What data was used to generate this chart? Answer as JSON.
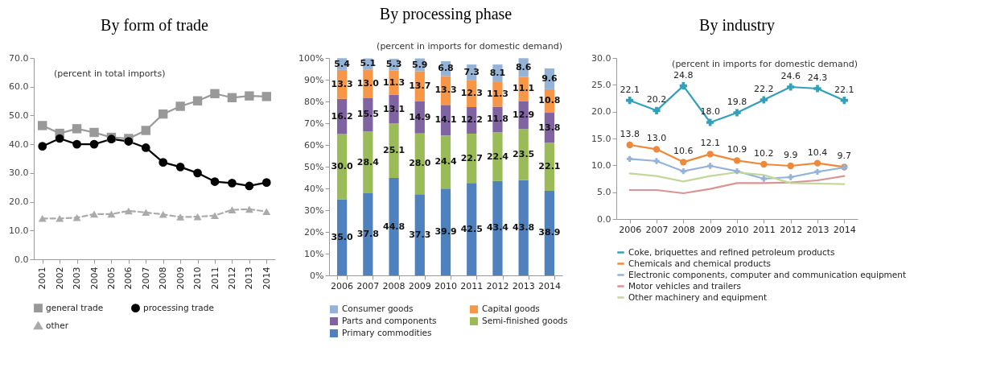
{
  "chart_data": [
    {
      "type": "line",
      "title": "By form of trade",
      "annotations": [
        "(percent in total imports)"
      ],
      "categories": [
        "2001",
        "2002",
        "2003",
        "2004",
        "2005",
        "2006",
        "2007",
        "2008",
        "2009",
        "2010",
        "2011",
        "2012",
        "2013",
        "2014"
      ],
      "series": [
        {
          "name": "general trade",
          "color": "#999999",
          "marker": "square",
          "line_style": "solid",
          "values": [
            46.5,
            43.8,
            45.4,
            44.1,
            42.4,
            42.0,
            44.8,
            50.5,
            53.2,
            55.1,
            57.6,
            56.2,
            56.8,
            56.6
          ]
        },
        {
          "name": "processing trade",
          "color": "#000000",
          "marker": "circle",
          "line_style": "solid",
          "values": [
            39.3,
            42.0,
            40.0,
            40.0,
            41.8,
            41.0,
            38.8,
            33.7,
            32.1,
            30.0,
            27.0,
            26.5,
            25.5,
            26.7
          ]
        },
        {
          "name": "other",
          "color": "#aaaaaa",
          "marker": "triangle",
          "line_style": "dashed",
          "values": [
            14.2,
            14.2,
            14.5,
            15.7,
            15.7,
            16.8,
            16.3,
            15.6,
            14.7,
            14.8,
            15.2,
            17.2,
            17.4,
            16.6
          ]
        }
      ],
      "ylim": [
        0,
        70
      ],
      "yticks": [
        {
          "value": 0,
          "label": "0.0"
        },
        {
          "value": 10,
          "label": "10.0"
        },
        {
          "value": 20,
          "label": "20.0"
        },
        {
          "value": 30,
          "label": "30.0"
        },
        {
          "value": 40,
          "label": "40.0"
        },
        {
          "value": 50,
          "label": "50.0"
        },
        {
          "value": 60,
          "label": "60.0"
        },
        {
          "value": 70,
          "label": "70.0"
        }
      ],
      "grid": false,
      "legend": "bottom"
    },
    {
      "type": "bar",
      "title": "By processing phase",
      "annotations": [
        "(percent in imports for domestic demand)"
      ],
      "stacked": true,
      "categories": [
        "2006",
        "2007",
        "2008",
        "2009",
        "2010",
        "2011",
        "2012",
        "2013",
        "2014"
      ],
      "series": [
        {
          "name": "Primary commodities",
          "color": "#4f81bd",
          "values": [
            35.0,
            37.8,
            44.8,
            37.3,
            39.9,
            42.5,
            43.4,
            43.8,
            38.9
          ],
          "value_labels": [
            "35.0",
            "37.8",
            "44.8",
            "37.3",
            "39.9",
            "42.5",
            "43.4",
            "43.8",
            "38.9"
          ]
        },
        {
          "name": "Semi-finished goods",
          "color": "#9bbb59",
          "values": [
            30.0,
            28.4,
            25.1,
            28.0,
            24.4,
            22.7,
            22.4,
            23.5,
            22.1
          ],
          "value_labels": [
            "30.0",
            "28.4",
            "25.1",
            "28.0",
            "24.4",
            "22.7",
            "22.4",
            "23.5",
            "22.1"
          ]
        },
        {
          "name": "Parts and components",
          "color": "#8064a2",
          "values": [
            16.2,
            15.5,
            13.1,
            14.9,
            14.1,
            12.2,
            11.8,
            12.9,
            13.8
          ],
          "value_labels": [
            "16.2",
            "15.5",
            "13.1",
            "14.9",
            "14.1",
            "12.2",
            "11.8",
            "12.9",
            "13.8"
          ]
        },
        {
          "name": "Capital goods",
          "color": "#f79646",
          "values": [
            13.3,
            13.0,
            11.3,
            13.7,
            13.3,
            12.3,
            11.3,
            11.1,
            10.8
          ],
          "value_labels": [
            "13.3",
            "13.0",
            "11.3",
            "13.7",
            "13.3",
            "12.3",
            "11.3",
            "11.1",
            "10.8"
          ]
        },
        {
          "name": "Consumer goods",
          "color": "#95b3d7",
          "values": [
            5.4,
            5.1,
            5.3,
            5.9,
            6.8,
            7.3,
            8.1,
            8.6,
            9.6
          ],
          "value_labels": [
            "5.4",
            "5.1",
            "5.3",
            "5.9",
            "6.8",
            "7.3",
            "8.1",
            "8.6",
            "9.6"
          ]
        }
      ],
      "ylim": [
        0,
        100
      ],
      "yticks": [
        {
          "value": 0,
          "label": "0%"
        },
        {
          "value": 10,
          "label": "10%"
        },
        {
          "value": 20,
          "label": "20%"
        },
        {
          "value": 30,
          "label": "30%"
        },
        {
          "value": 40,
          "label": "40%"
        },
        {
          "value": 50,
          "label": "50%"
        },
        {
          "value": 60,
          "label": "60%"
        },
        {
          "value": 70,
          "label": "70%"
        },
        {
          "value": 80,
          "label": "80%"
        },
        {
          "value": 90,
          "label": "90%"
        },
        {
          "value": 100,
          "label": "100%"
        }
      ],
      "grid": false,
      "legend": "bottom"
    },
    {
      "type": "line",
      "title": "By industry",
      "annotations": [
        "(percent in imports for domestic demand)"
      ],
      "categories": [
        "2006",
        "2007",
        "2008",
        "2009",
        "2010",
        "2011",
        "2012",
        "2013",
        "2014"
      ],
      "series": [
        {
          "name": "Coke, briquettes and refined petroleum products",
          "color": "#31a0b8",
          "marker": "cross",
          "values": [
            22.1,
            20.2,
            24.8,
            18.0,
            19.8,
            22.2,
            24.6,
            24.3,
            22.1
          ],
          "value_labels": [
            "22.1",
            "20.2",
            "24.8",
            "18.0",
            "19.8",
            "22.2",
            "24.6",
            "24.3",
            "22.1"
          ]
        },
        {
          "name": "Chemicals and chemical products",
          "color": "#f0883a",
          "marker": "circle",
          "values": [
            13.8,
            13.0,
            10.6,
            12.1,
            10.9,
            10.2,
            9.9,
            10.4,
            9.7
          ],
          "value_labels": [
            "13.8",
            "13.0",
            "10.6",
            "12.1",
            "10.9",
            "10.2",
            "9.9",
            "10.4",
            "9.7"
          ]
        },
        {
          "name": "Electronic components, computer and communication equipment",
          "color": "#95b3d7",
          "marker": "cross",
          "values": [
            11.2,
            10.8,
            8.9,
            9.9,
            8.9,
            7.5,
            7.8,
            8.8,
            9.6
          ]
        },
        {
          "name": "Motor vehicles and trailers",
          "color": "#d99594",
          "values": [
            5.4,
            5.4,
            4.8,
            5.6,
            6.7,
            6.7,
            6.8,
            7.2,
            8.0
          ]
        },
        {
          "name": "Other machinery and equipment",
          "color": "#c3d69b",
          "values": [
            8.5,
            8.0,
            7.0,
            8.0,
            8.7,
            8.2,
            6.7,
            6.6,
            6.5
          ]
        }
      ],
      "ylim": [
        0,
        30
      ],
      "yticks": [
        {
          "value": 0,
          "label": "0.0"
        },
        {
          "value": 5,
          "label": "5.0"
        },
        {
          "value": 10,
          "label": "10.0"
        },
        {
          "value": 15,
          "label": "15.0"
        },
        {
          "value": 20,
          "label": "20.0"
        },
        {
          "value": 25,
          "label": "25.0"
        },
        {
          "value": 30,
          "label": "30.0"
        }
      ],
      "grid": false,
      "legend": "bottom"
    }
  ]
}
